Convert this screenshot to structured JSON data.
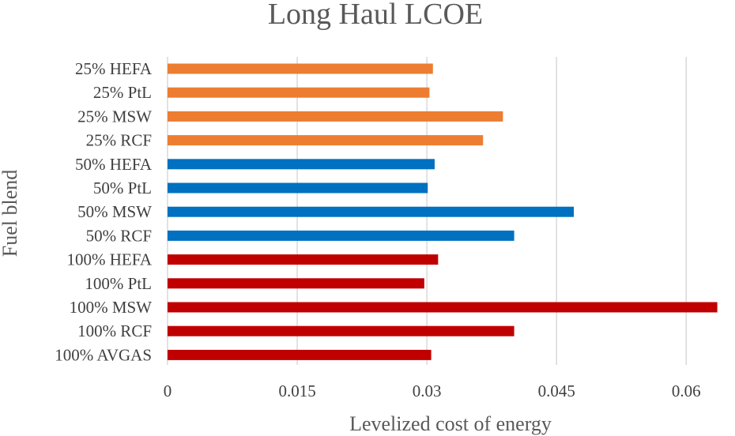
{
  "chart_data": {
    "type": "bar",
    "orientation": "horizontal",
    "title": "Long Haul LCOE",
    "xlabel": "Levelized cost of energy",
    "ylabel": "Fuel blend",
    "xlim": [
      0,
      0.064
    ],
    "xticks": [
      0,
      0.015,
      0.03,
      0.045,
      0.06
    ],
    "xtick_labels": [
      "0",
      "0.015",
      "0.03",
      "0.045",
      "0.06"
    ],
    "grid": true,
    "legend": "none",
    "categories": [
      "25% HEFA",
      "25% PtL",
      "25% MSW",
      "25% RCF",
      "50% HEFA",
      "50% PtL",
      "50% MSW",
      "50% RCF",
      "100% HEFA",
      "100% PtL",
      "100% MSW",
      "100% RCF",
      "100% AVGAS"
    ],
    "values": [
      0.0307,
      0.0303,
      0.0388,
      0.0365,
      0.0309,
      0.0301,
      0.047,
      0.0401,
      0.0313,
      0.0297,
      0.0636,
      0.0401,
      0.0305
    ],
    "colors": [
      "#ED7D31",
      "#ED7D31",
      "#ED7D31",
      "#ED7D31",
      "#0070C0",
      "#0070C0",
      "#0070C0",
      "#0070C0",
      "#C00000",
      "#C00000",
      "#C00000",
      "#C00000",
      "#C00000"
    ]
  }
}
